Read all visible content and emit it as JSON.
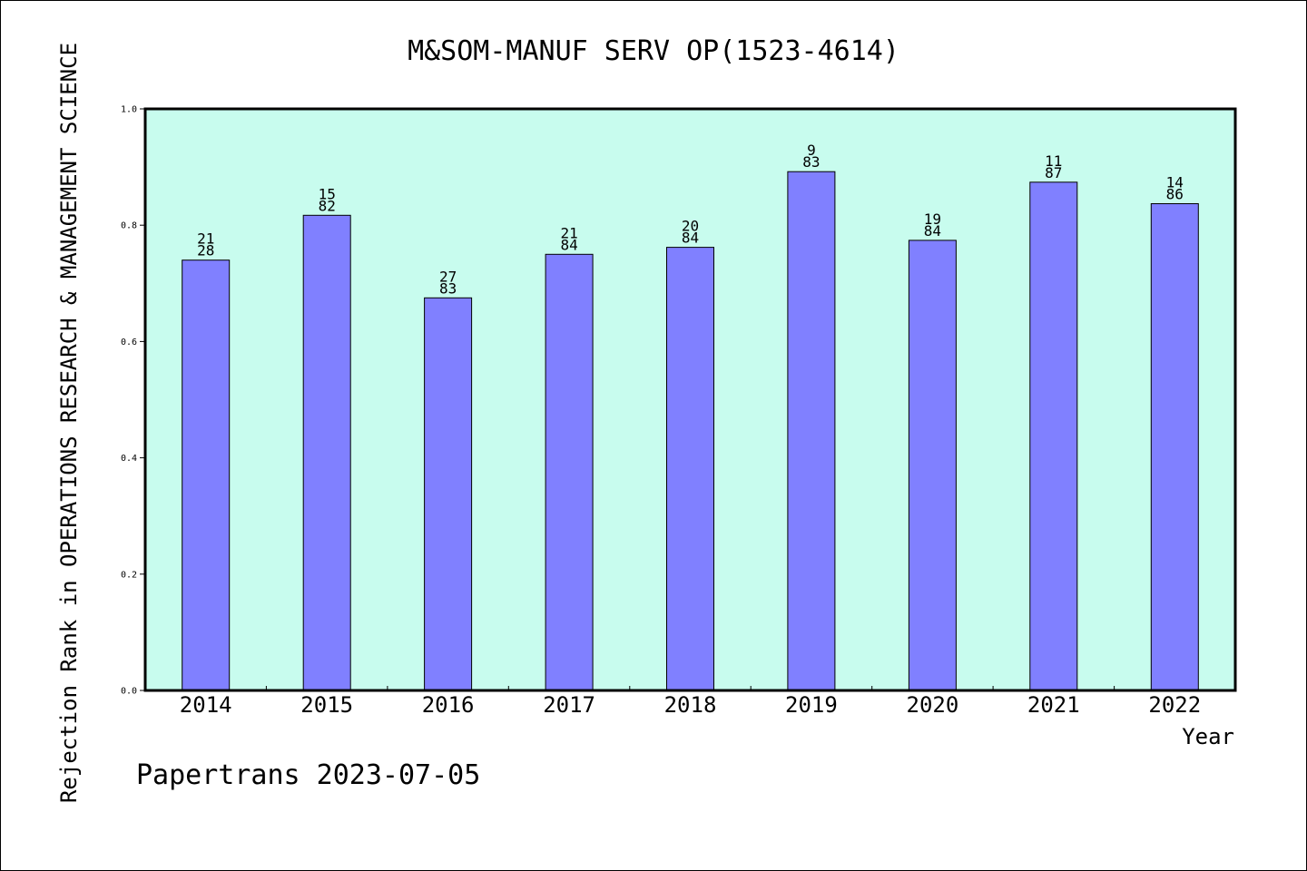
{
  "chart_data": {
    "type": "bar",
    "title": "M&SOM-MANUF SERV OP(1523-4614)",
    "ylabel": "Rejection Rank in OPERATIONS RESEARCH & MANAGEMENT SCIENCE",
    "xlabel": "Year",
    "categories": [
      "2014",
      "2015",
      "2016",
      "2017",
      "2018",
      "2019",
      "2020",
      "2021",
      "2022"
    ],
    "values": [
      0.74,
      0.817,
      0.675,
      0.75,
      0.762,
      0.892,
      0.774,
      0.874,
      0.837
    ],
    "bar_labels_top": [
      "21",
      "15",
      "27",
      "21",
      "20",
      "9",
      "19",
      "11",
      "14"
    ],
    "bar_labels_bottom": [
      "28",
      "82",
      "83",
      "84",
      "84",
      "83",
      "84",
      "87",
      "86"
    ],
    "ylim": [
      0.0,
      1.0
    ],
    "yticks": [
      "0.0",
      "0.2",
      "0.4",
      "0.6",
      "0.8",
      "1.0"
    ],
    "grid": false,
    "colors": {
      "plot_background": "#c8fcee",
      "bar_fill": "#8080ff",
      "bar_stroke": "#000000",
      "axes": "#000000"
    }
  },
  "footer": {
    "text": "Papertrans 2023-07-05"
  }
}
